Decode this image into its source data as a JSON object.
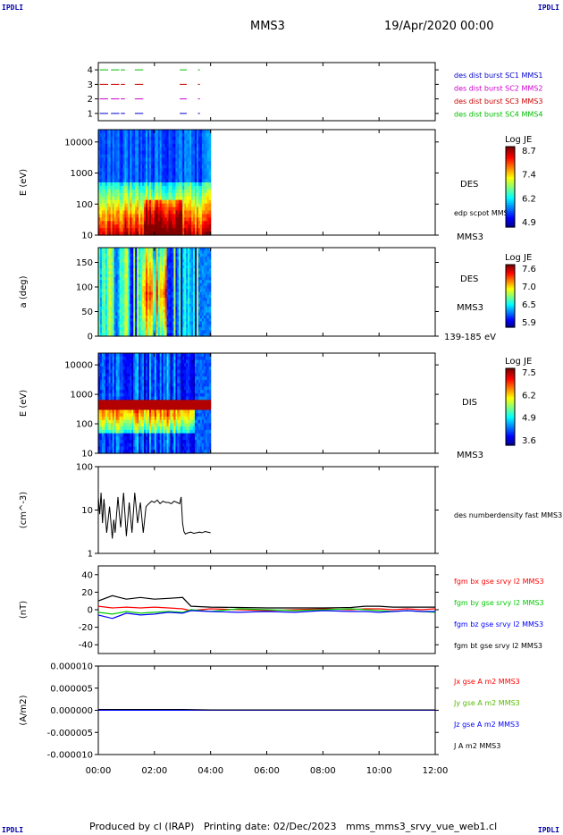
{
  "header": {
    "corner_left": "IPDLI",
    "corner_right": "IPDLI",
    "title": "MMS3",
    "date": "19/Apr/2020 00:00"
  },
  "footer": {
    "corner_left": "IPDLI",
    "corner_right": "IPDLI",
    "text": "Produced by cl (IRAP)   Printing date: 02/Dec/2023   mms_mms3_srvy_vue_web1.cl"
  },
  "colors": {
    "spacecraft": [
      "#0000cc",
      "#cc00cc",
      "#cc0000",
      "#00bb00"
    ],
    "field_components": [
      "#ff0000",
      "#00cc00",
      "#0000ff",
      "#000000"
    ],
    "current_components": [
      "#ff0000",
      "#55bb00",
      "#0000ff",
      "#000000"
    ]
  },
  "chart_data": [
    {
      "type": "line",
      "panel": "burst-availability",
      "ylim": [
        0.5,
        4.5
      ],
      "yticks": [
        "1",
        "2",
        "3",
        "4"
      ],
      "legend": [
        "des dist burst SC1 MMS1",
        "des dist burst SC2 MMS2",
        "des dist burst SC3 MMS3",
        "des dist burst SC4 MMS4"
      ],
      "series": [
        {
          "name": "des dist burst SC1 MMS1",
          "y": 1,
          "intervals": [
            [
              0.05,
              0.35
            ],
            [
              0.45,
              0.75
            ],
            [
              0.8,
              0.95
            ],
            [
              1.3,
              1.6
            ],
            [
              2.9,
              3.15
            ],
            [
              3.55,
              3.62
            ]
          ]
        },
        {
          "name": "des dist burst SC2 MMS2",
          "y": 2,
          "intervals": [
            [
              0.05,
              0.35
            ],
            [
              0.45,
              0.75
            ],
            [
              0.8,
              0.95
            ],
            [
              1.3,
              1.6
            ],
            [
              2.9,
              3.15
            ],
            [
              3.55,
              3.62
            ]
          ]
        },
        {
          "name": "des dist burst SC3 MMS3",
          "y": 3,
          "intervals": [
            [
              0.05,
              0.35
            ],
            [
              0.45,
              0.75
            ],
            [
              0.8,
              0.95
            ],
            [
              1.3,
              1.6
            ],
            [
              2.9,
              3.15
            ],
            [
              3.55,
              3.62
            ]
          ]
        },
        {
          "name": "des dist burst SC4 MMS4",
          "y": 4,
          "intervals": [
            [
              0.05,
              0.35
            ],
            [
              0.45,
              0.75
            ],
            [
              0.8,
              0.95
            ],
            [
              1.3,
              1.6
            ],
            [
              2.9,
              3.15
            ],
            [
              3.55,
              3.62
            ]
          ]
        }
      ]
    },
    {
      "type": "heatmap",
      "panel": "des-energy-spectrogram",
      "ylabel": "E (eV)",
      "yscale": "log",
      "ylim": [
        10,
        25000
      ],
      "yticks": [
        "10",
        "100",
        "1000",
        "10000"
      ],
      "label": "DES",
      "note": "edp scpot MMS3",
      "spacecraft": "MMS3",
      "colorbar": {
        "title": "Log JE",
        "ticks": [
          "8.7",
          "7.4",
          "6.2",
          "4.9"
        ],
        "range": [
          4.9,
          8.7
        ]
      },
      "data_extent_hours": [
        0,
        4.0
      ]
    },
    {
      "type": "heatmap",
      "panel": "des-pitch-angle",
      "ylabel": "a (deg)",
      "ylim": [
        0,
        180
      ],
      "yticks": [
        "0",
        "50",
        "100",
        "150"
      ],
      "label": "DES",
      "spacecraft": "MMS3",
      "energy_range": "139-185 eV",
      "colorbar": {
        "title": "Log JE",
        "ticks": [
          "7.6",
          "7.0",
          "6.5",
          "5.9"
        ],
        "range": [
          5.9,
          7.6
        ]
      },
      "data_extent_hours": [
        0,
        4.0
      ]
    },
    {
      "type": "heatmap",
      "panel": "dis-energy-spectrogram",
      "ylabel": "E (eV)",
      "yscale": "log",
      "ylim": [
        10,
        25000
      ],
      "yticks": [
        "10",
        "100",
        "1000",
        "10000"
      ],
      "label": "DIS",
      "spacecraft": "MMS3",
      "colorbar": {
        "title": "Log JE",
        "ticks": [
          "7.5",
          "6.2",
          "4.9",
          "3.6"
        ],
        "range": [
          3.6,
          7.5
        ]
      },
      "data_extent_hours": [
        0,
        4.0
      ]
    },
    {
      "type": "line",
      "panel": "density",
      "ylabel": "(cm^-3)",
      "yscale": "log",
      "ylim": [
        1,
        100
      ],
      "yticks": [
        "1",
        "10",
        "100"
      ],
      "series": [
        {
          "name": "des numberdensity fast MMS3",
          "x": [
            0.0,
            0.05,
            0.1,
            0.15,
            0.2,
            0.3,
            0.4,
            0.5,
            0.55,
            0.6,
            0.7,
            0.75,
            0.8,
            0.9,
            1.0,
            1.1,
            1.2,
            1.3,
            1.4,
            1.5,
            1.6,
            1.7,
            1.8,
            1.9,
            2.0,
            2.1,
            2.2,
            2.3,
            2.4,
            2.5,
            2.6,
            2.7,
            2.8,
            2.9,
            2.95,
            3.0,
            3.05,
            3.1,
            3.2,
            3.3,
            3.4,
            3.5,
            3.6,
            3.7,
            3.8,
            3.9,
            4.0
          ],
          "y": [
            20,
            8,
            25,
            5,
            18,
            3,
            12,
            2.2,
            6,
            3,
            20,
            8,
            4,
            25,
            2.5,
            15,
            3,
            25,
            5,
            15,
            3,
            12,
            14,
            16,
            15,
            17,
            14,
            16,
            15,
            15,
            14,
            16,
            15,
            14,
            20,
            5,
            3.2,
            2.8,
            3.0,
            3.1,
            2.9,
            3.0,
            3.1,
            3.0,
            3.2,
            3.1,
            3.0
          ]
        }
      ]
    },
    {
      "type": "line",
      "panel": "magnetic-field",
      "ylabel": "(nT)",
      "ylim": [
        -50,
        50
      ],
      "yticks": [
        "-40",
        "-20",
        "0",
        "20",
        "40"
      ],
      "legend": [
        "fgm bx gse srvy l2 MMS3",
        "fgm by gse srvy l2 MMS3",
        "fgm bz gse srvy l2 MMS3",
        "fgm bt gse srvy l2 MMS3"
      ],
      "x": [
        0,
        0.5,
        1.0,
        1.5,
        2.0,
        2.5,
        3.0,
        3.3,
        4.0,
        5.0,
        6.0,
        7.0,
        8.0,
        9.0,
        9.5,
        10.0,
        10.5,
        11.0,
        11.5,
        12.0
      ],
      "series": [
        {
          "name": "fgm bx gse srvy l2 MMS3",
          "values": [
            4,
            2,
            3,
            2,
            3,
            2,
            1,
            -1,
            1,
            0,
            -1,
            0,
            1,
            0,
            1,
            1,
            0,
            1,
            0,
            1
          ]
        },
        {
          "name": "fgm by gse srvy l2 MMS3",
          "values": [
            -3,
            -5,
            -2,
            -4,
            -3,
            -2,
            -3,
            0,
            -2,
            1,
            0,
            -1,
            0,
            1,
            0,
            -1,
            -2,
            -1,
            -2,
            -3
          ]
        },
        {
          "name": "fgm bz gse srvy l2 MMS3",
          "values": [
            -6,
            -10,
            -4,
            -6,
            -5,
            -3,
            -4,
            -1,
            -2,
            -3,
            -2,
            -3,
            -1,
            -2,
            -2,
            -3,
            -2,
            -1,
            -2,
            -2
          ]
        },
        {
          "name": "fgm bt gse srvy l2 MMS3",
          "values": [
            10,
            16,
            12,
            14,
            12,
            13,
            14,
            4,
            3,
            2.5,
            2,
            2,
            2,
            2.5,
            4,
            4,
            3,
            3,
            3,
            3
          ]
        }
      ]
    },
    {
      "type": "line",
      "panel": "current-density",
      "ylabel": "(A/m2)",
      "ylim": [
        -1e-05,
        1e-05
      ],
      "yticks": [
        "-0.000010",
        "-0.000005",
        "0.000000",
        "0.000005",
        "0.000010"
      ],
      "legend": [
        "Jx gse A m2 MMS3",
        "Jy gse A m2 MMS3",
        "Jz gse A m2 MMS3",
        "J A m2 MMS3"
      ],
      "x": [
        0,
        1,
        2,
        3,
        4,
        5,
        6,
        7,
        8,
        9,
        10,
        11,
        12
      ],
      "series": [
        {
          "name": "Jx gse A m2 MMS3",
          "values": [
            0,
            0,
            0,
            0,
            0,
            0,
            0,
            0,
            0,
            0,
            0,
            0,
            0
          ]
        },
        {
          "name": "Jy gse A m2 MMS3",
          "values": [
            0,
            0,
            0,
            0,
            0,
            0,
            0,
            0,
            0,
            0,
            0,
            0,
            0
          ]
        },
        {
          "name": "Jz gse A m2 MMS3",
          "values": [
            0,
            0,
            0,
            0,
            0,
            0,
            0,
            0,
            0,
            0,
            0,
            0,
            0
          ]
        },
        {
          "name": "J A m2 MMS3",
          "values": [
            2e-07,
            2e-07,
            2e-07,
            2e-07,
            1e-07,
            1e-07,
            1e-07,
            1e-07,
            1e-07,
            1e-07,
            1e-07,
            1e-07,
            1e-07
          ]
        }
      ]
    }
  ],
  "time_axis": {
    "xlim_hours": [
      0,
      12
    ],
    "ticks": [
      "00:00",
      "02:00",
      "04:00",
      "06:00",
      "08:00",
      "10:00",
      "12:00"
    ]
  }
}
